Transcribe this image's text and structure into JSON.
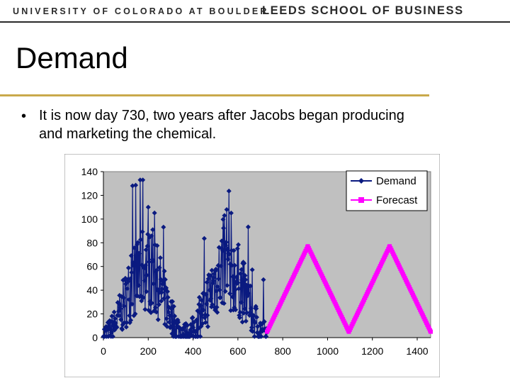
{
  "header": {
    "university": "UNIVERSITY OF COLORADO AT BOULDER",
    "school": "LEEDS SCHOOL OF BUSINESS"
  },
  "slide": {
    "title": "Demand",
    "bullet": "It is now day 730, two years after Jacobs began producing and marketing the chemical."
  },
  "colors": {
    "demand": "#0a1a80",
    "forecast": "#ff00ff",
    "plot_bg": "#c0c0c0",
    "accent_rule": "#c9a94b"
  },
  "chart_data": {
    "type": "line",
    "title": "",
    "xlabel": "",
    "ylabel": "",
    "xlim": [
      0,
      1460
    ],
    "ylim": [
      0,
      140
    ],
    "xticks": [
      0,
      200,
      400,
      600,
      800,
      1000,
      1200,
      1400
    ],
    "yticks": [
      0,
      20,
      40,
      60,
      80,
      100,
      120,
      140
    ],
    "grid": false,
    "legend": "top-right",
    "series": [
      {
        "name": "Demand",
        "marker": "diamond",
        "x_range": [
          0,
          730
        ],
        "pattern": "noisy seasonal cycle, peaks near day 190 and day 550, troughs near days 0, 365, 730",
        "approx_peaks": [
          {
            "x": 130,
            "y": 128
          },
          {
            "x": 175,
            "y": 133
          },
          {
            "x": 200,
            "y": 110
          },
          {
            "x": 550,
            "y": 108
          }
        ],
        "approx_envelope": {
          "min": 0,
          "max": 133
        }
      },
      {
        "name": "Forecast",
        "marker": "square",
        "x": [
          730,
          912,
          1095,
          1277,
          1460
        ],
        "values": [
          5,
          77,
          5,
          77,
          5
        ]
      }
    ]
  }
}
